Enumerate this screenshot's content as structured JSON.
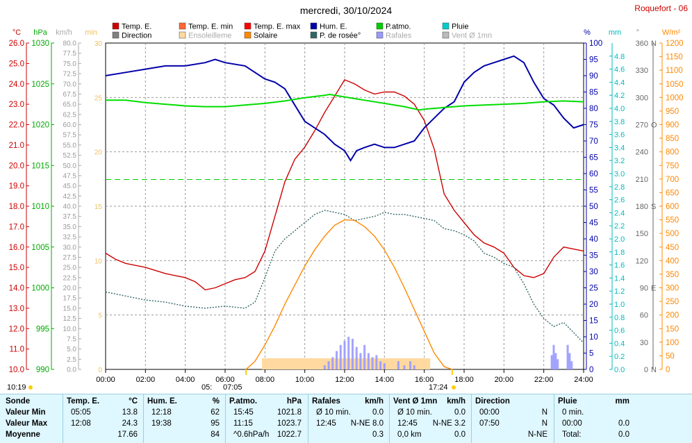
{
  "title": "mercredi, 30/10/2024",
  "station": "Roquefort - 06",
  "legend": [
    {
      "label": "Temp. E.",
      "color": "#cc0000"
    },
    {
      "label": "Direction",
      "color": "#808080"
    },
    {
      "label": "Temp. E. min",
      "color": "#ff6633"
    },
    {
      "label": "Ensoleilleme",
      "color": "#ffd9a0"
    },
    {
      "label": "Temp. E. max",
      "color": "#ff0000"
    },
    {
      "label": "Solaire",
      "color": "#ff8800"
    },
    {
      "label": "Hum. E.",
      "color": "#0000aa"
    },
    {
      "label": "P. de rosée°",
      "color": "#336666"
    },
    {
      "label": "P.atmo.",
      "color": "#00cc00"
    },
    {
      "label": "Rafales",
      "color": "#9999ff"
    },
    {
      "label": "Pluie",
      "color": "#00cccc"
    },
    {
      "label": "Vent Ø 1mn",
      "color": "#bbbbbb"
    }
  ],
  "axis_units": {
    "temp": "°C",
    "pressure": "hPa",
    "wind": "km/h",
    "min": "min",
    "humidity": "%",
    "rain": "mm",
    "dir": "°",
    "solar": "W/m²"
  },
  "sun": {
    "sunrise": "07:05",
    "sunset": "17:24",
    "left_time": "10:19",
    "mid_label": "05:"
  },
  "chart_data": {
    "type": "line",
    "x_ticks": [
      "00:00",
      "02:00",
      "04:00",
      "06:00",
      "08:00",
      "10:00",
      "12:00",
      "14:00",
      "16:00",
      "18:00",
      "20:00",
      "22:00",
      "24:00"
    ],
    "xlim": [
      0,
      24
    ],
    "temp_axis": {
      "ylim": [
        10,
        26
      ],
      "ticks": [
        "10.0",
        "11.0",
        "12.0",
        "13.0",
        "14.0",
        "15.0",
        "16.0",
        "17.0",
        "18.0",
        "19.0",
        "20.0",
        "21.0",
        "22.0",
        "23.0",
        "24.0",
        "25.0",
        "26.0"
      ]
    },
    "pressure_axis": {
      "ylim": [
        990,
        1030
      ],
      "ticks": [
        "990",
        "995",
        "1000",
        "1005",
        "1010",
        "1015",
        "1020",
        "1025",
        "1030"
      ]
    },
    "wind_axis": {
      "ylim": [
        0,
        80
      ],
      "ticks": [
        "0.0",
        "2.5",
        "5.0",
        "7.5",
        "10.0",
        "12.5",
        "15.0",
        "17.5",
        "20.0",
        "22.5",
        "25.0",
        "27.5",
        "30.0",
        "32.5",
        "35.0",
        "37.5",
        "40.0",
        "42.5",
        "45.0",
        "47.5",
        "50.0",
        "52.5",
        "55.0",
        "57.5",
        "60.0",
        "62.5",
        "65.0",
        "67.5",
        "70.0",
        "72.5",
        "75.0",
        "77.5",
        "80.0"
      ]
    },
    "min_axis": {
      "ylim": [
        0,
        30
      ],
      "ticks": [
        "0",
        "5",
        "10",
        "15",
        "20",
        "25",
        "30"
      ]
    },
    "humidity_axis": {
      "ylim": [
        0,
        100
      ],
      "ticks": [
        "0",
        "5",
        "10",
        "15",
        "20",
        "25",
        "30",
        "35",
        "40",
        "45",
        "50",
        "55",
        "60",
        "65",
        "70",
        "75",
        "80",
        "85",
        "90",
        "95",
        "100"
      ]
    },
    "rain_axis": {
      "ylim": [
        0,
        5
      ],
      "ticks": [
        "0.0",
        "0.2",
        "0.4",
        "0.6",
        "0.8",
        "1.0",
        "1.2",
        "1.4",
        "1.6",
        "1.8",
        "2.0",
        "2.2",
        "2.4",
        "2.6",
        "2.8",
        "3.0",
        "3.2",
        "3.4",
        "3.6",
        "3.8",
        "4.0",
        "4.2",
        "4.4",
        "4.6",
        "4.8"
      ]
    },
    "dir_axis": {
      "ylim": [
        0,
        360
      ],
      "ticks": [
        "0",
        "30",
        "60",
        "90",
        "120",
        "150",
        "180",
        "210",
        "240",
        "270",
        "300",
        "330",
        "360"
      ],
      "cardinals": {
        "0": "N",
        "90": "E",
        "180": "S",
        "270": "O",
        "360": "N"
      }
    },
    "solar_axis": {
      "ylim": [
        0,
        1200
      ],
      "ticks": [
        "0",
        "50",
        "100",
        "150",
        "200",
        "250",
        "300",
        "350",
        "400",
        "450",
        "500",
        "550",
        "600",
        "650",
        "700",
        "750",
        "800",
        "850",
        "900",
        "950",
        "1000",
        "1050",
        "1100",
        "1150",
        "1200"
      ]
    },
    "series": [
      {
        "name": "Temp. E.",
        "color": "#cc0000",
        "axis": "temp",
        "x": [
          0,
          0.5,
          1,
          2,
          3,
          3.5,
          4,
          4.5,
          5,
          5.5,
          6,
          6.5,
          7,
          7.5,
          8,
          8.5,
          9,
          9.5,
          10,
          10.5,
          11,
          11.5,
          12,
          12.5,
          13,
          13.5,
          14,
          14.5,
          15,
          15.5,
          16,
          16.5,
          17,
          17.5,
          18,
          18.5,
          19,
          19.5,
          20,
          20.5,
          21,
          21.5,
          22,
          22.5,
          23,
          23.5,
          24
        ],
        "values": [
          15.7,
          15.4,
          15.2,
          15.0,
          14.7,
          14.6,
          14.5,
          14.3,
          13.9,
          14.0,
          14.2,
          14.4,
          14.5,
          14.8,
          15.8,
          17.5,
          19.2,
          20.3,
          20.9,
          21.7,
          22.6,
          23.4,
          24.2,
          24.0,
          23.7,
          23.5,
          23.6,
          23.6,
          23.4,
          23.0,
          22.2,
          20.8,
          18.6,
          17.8,
          17.2,
          16.6,
          16.2,
          16.0,
          15.7,
          15.0,
          14.6,
          14.5,
          14.7,
          15.5,
          16.0,
          15.9,
          15.8
        ]
      },
      {
        "name": "Hum. E.",
        "color": "#0000aa",
        "axis": "humidity",
        "x": [
          0,
          1,
          2,
          3,
          4,
          5,
          5.5,
          6,
          7,
          8,
          8.5,
          9,
          9.5,
          10,
          10.5,
          11,
          11.5,
          12,
          12.3,
          12.6,
          13,
          13.5,
          14,
          14.5,
          15,
          15.5,
          16,
          16.5,
          17,
          17.5,
          18,
          18.5,
          19,
          19.5,
          20,
          20.5,
          21,
          21.5,
          22,
          22.5,
          23,
          23.5,
          24
        ],
        "values": [
          90,
          91,
          92,
          93,
          93,
          94,
          95,
          94,
          93,
          89,
          88,
          86,
          81,
          76,
          74,
          72,
          69,
          67,
          64,
          67,
          68,
          69,
          68,
          68,
          69,
          70,
          74,
          77,
          80,
          82,
          88,
          91,
          93,
          94,
          95,
          96,
          94,
          88,
          83,
          81,
          77,
          74,
          75
        ]
      },
      {
        "name": "P.atmo.",
        "color": "#00dd00",
        "axis": "pressure",
        "x": [
          0,
          1,
          2,
          3,
          4,
          5,
          6,
          7,
          8,
          9,
          10,
          11,
          11.25,
          12,
          13,
          14,
          15,
          15.75,
          16,
          17,
          18,
          19,
          20,
          21,
          22,
          23,
          24
        ],
        "values": [
          1023.0,
          1023.0,
          1022.7,
          1022.5,
          1022.3,
          1022.2,
          1022.2,
          1022.4,
          1022.6,
          1022.9,
          1023.3,
          1023.6,
          1023.7,
          1023.4,
          1023.0,
          1022.6,
          1022.2,
          1021.8,
          1021.9,
          1022.1,
          1022.3,
          1022.4,
          1022.5,
          1022.6,
          1022.8,
          1022.9,
          1022.8
        ]
      },
      {
        "name": "P. de rosée°",
        "color": "#336666",
        "axis": "temp",
        "dashed": true,
        "x": [
          0,
          1,
          2,
          3,
          4,
          5,
          6,
          7,
          7.5,
          8,
          8.5,
          9,
          9.5,
          10,
          10.5,
          11,
          11.5,
          12,
          12.5,
          13,
          13.5,
          14,
          14.5,
          15,
          15.5,
          16,
          16.5,
          17,
          17.5,
          18,
          18.5,
          19,
          19.5,
          20,
          20.5,
          21,
          21.5,
          22,
          22.5,
          23,
          23.5,
          24
        ],
        "values": [
          13.8,
          13.6,
          13.4,
          13.3,
          13.1,
          13.0,
          13.1,
          13.0,
          13.3,
          14.5,
          15.8,
          16.4,
          16.8,
          17.2,
          17.6,
          17.8,
          17.7,
          17.6,
          17.3,
          17.4,
          17.5,
          17.7,
          17.6,
          17.6,
          17.5,
          17.4,
          17.3,
          16.9,
          16.8,
          16.6,
          16.3,
          15.7,
          15.5,
          15.2,
          15.0,
          14.2,
          13.2,
          12.5,
          12.1,
          12.3,
          11.8,
          11.3
        ]
      },
      {
        "name": "Solaire",
        "color": "#ff8800",
        "axis": "solar",
        "x": [
          7.05,
          7.5,
          8,
          8.5,
          9,
          9.5,
          10,
          10.5,
          11,
          11.5,
          12,
          12.5,
          13,
          13.5,
          14,
          14.5,
          15,
          15.5,
          16,
          16.5,
          17.0,
          17.4
        ],
        "values": [
          0,
          30,
          90,
          160,
          240,
          310,
          380,
          440,
          490,
          530,
          550,
          548,
          525,
          490,
          440,
          375,
          300,
          220,
          140,
          60,
          10,
          0
        ]
      },
      {
        "name": "Rafales",
        "color": "#9999ff",
        "axis": "wind",
        "type": "bar",
        "x": [
          11.0,
          11.2,
          11.4,
          11.6,
          11.8,
          12.0,
          12.2,
          12.4,
          12.6,
          12.8,
          13.0,
          13.2,
          13.4,
          13.6,
          13.8,
          14.0,
          14.7,
          15.0,
          15.3,
          15.5,
          22.4,
          22.5,
          22.6,
          22.7,
          23.2,
          23.3,
          23.4
        ],
        "values": [
          1.0,
          2.0,
          3.0,
          4.5,
          6.0,
          7.0,
          8.0,
          7.5,
          5.5,
          4.0,
          6.0,
          4.0,
          3.0,
          3.5,
          2.0,
          1.5,
          2.0,
          1.0,
          2.0,
          1.0,
          3.5,
          6.0,
          4.0,
          2.5,
          6.0,
          4.0,
          2.0
        ]
      }
    ],
    "reference_lines": [
      {
        "axis": "humidity",
        "value": 58.2,
        "color": "#00cc00",
        "dashed": true
      }
    ],
    "sunshine_band": {
      "start": 7.85,
      "end": 16.3,
      "color": "#ffd9a0"
    }
  },
  "stats": {
    "headers": [
      {
        "label": "Sonde",
        "unit": ""
      },
      {
        "label": "Temp. E.",
        "unit": "°C"
      },
      {
        "label": "Hum. E.",
        "unit": "%"
      },
      {
        "label": "P.atmo.",
        "unit": "hPa"
      },
      {
        "label": "Rafales",
        "unit": "km/h"
      },
      {
        "label": "Vent Ø 1mn",
        "unit": "km/h"
      },
      {
        "label": "Direction",
        "unit": ""
      },
      {
        "label": "Pluie",
        "unit": "mm"
      }
    ],
    "rows": [
      {
        "label": "Valeur Min",
        "cells": [
          [
            "05:05",
            "13.8"
          ],
          [
            "12:18",
            "62"
          ],
          [
            "15:45",
            "1021.8"
          ],
          [
            "Ø 10 min.",
            "0.0"
          ],
          [
            "Ø 10 min.",
            "0.0"
          ],
          [
            "00:00",
            "N"
          ],
          [
            "0 min.",
            ""
          ]
        ]
      },
      {
        "label": "Valeur Max",
        "cells": [
          [
            "12:08",
            "24.3"
          ],
          [
            "19:38",
            "95"
          ],
          [
            "11:15",
            "1023.7"
          ],
          [
            "12:45",
            "N-NE 8.0"
          ],
          [
            "12:45",
            "N-NE 3.2"
          ],
          [
            "07:50",
            "N"
          ],
          [
            "00:00",
            "0.0"
          ]
        ]
      },
      {
        "label": "Moyenne",
        "cells": [
          [
            "",
            "17.66"
          ],
          [
            "",
            "84"
          ],
          [
            "^0.6hPa/h",
            "1022.7"
          ],
          [
            "",
            "0.3"
          ],
          [
            "0,0 km",
            "0.0"
          ],
          [
            "",
            "N-NE"
          ],
          [
            "Total:",
            "0.0"
          ]
        ]
      }
    ]
  }
}
